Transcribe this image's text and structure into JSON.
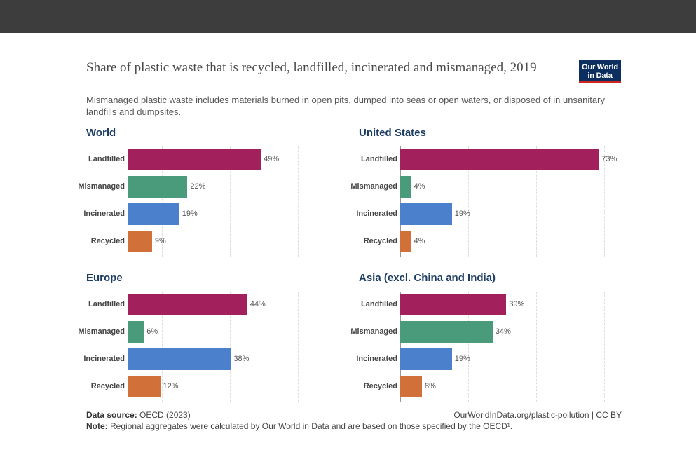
{
  "chart": {
    "title": "Share of plastic waste that is recycled, landfilled, incinerated and mismanaged, 2019",
    "subtitle": "Mismanaged plastic waste includes materials burned in open pits, dumped into seas or open waters, or disposed of in unsanitary landfills and dumpsites.",
    "logo_line1": "Our World",
    "logo_line2": "in Data"
  },
  "footer": {
    "source_label": "Data source:",
    "source_text": " OECD (2023)",
    "right_text": "OurWorldInData.org/plastic-pollution | CC BY",
    "note_label": "Note:",
    "note_text": " Regional aggregates were calculated by Our World in Data and are based on those specified by the OECD¹."
  },
  "colors": {
    "Landfilled": "#a2215c",
    "Mismanaged": "#4a9a7c",
    "Incinerated": "#4a80cc",
    "Recycled": "#d2703a"
  },
  "chart_data": [
    {
      "type": "bar",
      "orientation": "horizontal",
      "title": "World",
      "categories": [
        "Landfilled",
        "Mismanaged",
        "Incinerated",
        "Recycled"
      ],
      "values": [
        49,
        22,
        19,
        9
      ],
      "value_labels": [
        "49%",
        "22%",
        "19%",
        "9%"
      ],
      "xlim": [
        0,
        75
      ],
      "grid": true
    },
    {
      "type": "bar",
      "orientation": "horizontal",
      "title": "United States",
      "categories": [
        "Landfilled",
        "Mismanaged",
        "Incinerated",
        "Recycled"
      ],
      "values": [
        73,
        4,
        19,
        4
      ],
      "value_labels": [
        "73%",
        "4%",
        "19%",
        "4%"
      ],
      "xlim": [
        0,
        75
      ],
      "grid": true
    },
    {
      "type": "bar",
      "orientation": "horizontal",
      "title": "Europe",
      "categories": [
        "Landfilled",
        "Mismanaged",
        "Incinerated",
        "Recycled"
      ],
      "values": [
        44,
        6,
        38,
        12
      ],
      "value_labels": [
        "44%",
        "6%",
        "38%",
        "12%"
      ],
      "xlim": [
        0,
        75
      ],
      "grid": true
    },
    {
      "type": "bar",
      "orientation": "horizontal",
      "title": "Asia (excl. China and India)",
      "categories": [
        "Landfilled",
        "Mismanaged",
        "Incinerated",
        "Recycled"
      ],
      "values": [
        39,
        34,
        19,
        8
      ],
      "value_labels": [
        "39%",
        "34%",
        "19%",
        "8%"
      ],
      "xlim": [
        0,
        75
      ],
      "grid": true
    }
  ]
}
